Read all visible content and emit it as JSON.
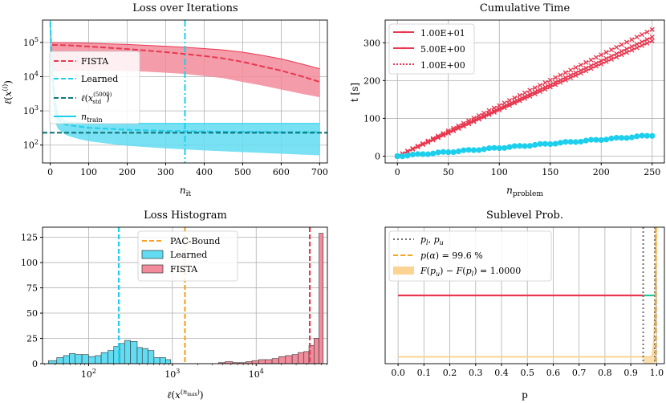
{
  "colors": {
    "fista": "#e8374f",
    "fista_fill": "#f28b9b",
    "learned": "#1ccfec",
    "learned_fill": "#62dcf2",
    "std": "#12787a",
    "pac": "#f7a325",
    "pac_fill": "#fbd392",
    "grid": "#b0b0b0",
    "dotted": "#6e6e6e",
    "green": "#2fc39a"
  },
  "chart_data": [
    {
      "type": "line",
      "title": "Loss over Iterations",
      "xlabel": "n_it",
      "ylabel": "ℓ(x^(i))",
      "yscale": "log",
      "xlim": [
        -20,
        720
      ],
      "ylim": [
        30,
        450000
      ],
      "xticks": [
        0,
        100,
        200,
        300,
        400,
        500,
        600,
        700
      ],
      "yticks": [
        {
          "v": 100,
          "e": "2"
        },
        {
          "v": 1000,
          "e": "3"
        },
        {
          "v": 10000,
          "e": "4"
        },
        {
          "v": 100000,
          "e": "5"
        }
      ],
      "legend": [
        {
          "label": "FISTA",
          "style": "dashed",
          "color": "fista"
        },
        {
          "label": "Learned",
          "style": "dashed",
          "color": "learned"
        },
        {
          "label": "ℓ(x_std^(5000))",
          "style": "dashed",
          "color": "std"
        },
        {
          "label": "n_train",
          "style": "solid",
          "color": "learned"
        }
      ],
      "series": [
        {
          "name": "FISTA",
          "x": [
            5,
            50,
            100,
            150,
            200,
            250,
            300,
            350,
            400,
            450,
            500,
            550,
            600,
            650,
            700
          ],
          "median": [
            85000,
            82000,
            76000,
            70000,
            64000,
            58000,
            52000,
            46000,
            40000,
            34000,
            27000,
            20000,
            15000,
            10500,
            7000
          ],
          "lower": [
            14000,
            14500,
            14800,
            14800,
            14500,
            14000,
            13000,
            12000,
            10500,
            9000,
            7000,
            5500,
            4200,
            3200,
            2500
          ],
          "upper": [
            100000,
            98000,
            95000,
            91000,
            87000,
            82000,
            77000,
            72000,
            66000,
            60000,
            52000,
            42000,
            33000,
            24000,
            17000
          ]
        },
        {
          "name": "Learned",
          "x": [
            0,
            3,
            6,
            10,
            15,
            20,
            30,
            40,
            50,
            75,
            100,
            150,
            200,
            300,
            400,
            500,
            600,
            700
          ],
          "median": [
            400000,
            60000,
            8000,
            2000,
            900,
            600,
            450,
            400,
            380,
            350,
            320,
            300,
            280,
            260,
            250,
            245,
            240,
            240
          ],
          "lower": [
            400000,
            30000,
            3000,
            800,
            400,
            300,
            240,
            200,
            180,
            150,
            130,
            110,
            95,
            80,
            70,
            62,
            56,
            50
          ],
          "upper": [
            450000,
            100000,
            20000,
            5000,
            1500,
            800,
            600,
            500,
            470,
            450,
            440,
            430,
            430,
            430,
            430,
            430,
            430,
            430
          ]
        },
        {
          "name": "std",
          "value": 230
        },
        {
          "name": "n_train",
          "x": 350
        }
      ]
    },
    {
      "type": "line",
      "title": "Cumulative Time",
      "xlabel": "n_problem",
      "ylabel": "t [s]",
      "xlim": [
        -12,
        262
      ],
      "ylim": [
        -18,
        360
      ],
      "xticks": [
        0,
        50,
        100,
        150,
        200,
        250
      ],
      "yticks": [
        0,
        100,
        200,
        300
      ],
      "legend": [
        {
          "label": "1.00E+01",
          "style": "solid"
        },
        {
          "label": "5.00E+00",
          "style": "solid"
        },
        {
          "label": "1.00E+00",
          "style": "dotted"
        }
      ],
      "series": [
        {
          "name": "1.00E+01",
          "slope": 1.26,
          "marker": "x",
          "color": "fista"
        },
        {
          "name": "5.00E+00",
          "slope": 1.22,
          "marker": "x",
          "color": "fista"
        },
        {
          "name": "1.00E+00",
          "slope": 1.34,
          "marker": "x",
          "color": "fista"
        },
        {
          "name": "Learned",
          "slope": 0.22,
          "marker": "o",
          "color": "learned"
        }
      ],
      "n_points": 250
    },
    {
      "type": "bar",
      "title": "Loss Histogram",
      "xlabel": "ℓ(x^(n_max))",
      "xscale": "log",
      "xlim_log10": [
        1.45,
        4.85
      ],
      "ylim": [
        0,
        135
      ],
      "yticks": [
        0,
        25,
        50,
        75,
        100,
        125
      ],
      "xticks": [
        {
          "v": 2,
          "e": "2"
        },
        {
          "v": 3,
          "e": "3"
        },
        {
          "v": 4,
          "e": "4"
        }
      ],
      "legend": [
        {
          "label": "PAC-Bound",
          "style": "dashed",
          "color": "pac"
        },
        {
          "label": "Learned",
          "style": "bar",
          "color": "learned"
        },
        {
          "label": "FISTA",
          "style": "bar",
          "color": "fista"
        }
      ],
      "vlines": [
        {
          "name": "Learned median",
          "x_log10": 2.36,
          "color": "learned"
        },
        {
          "name": "PAC-Bound",
          "x_log10": 3.15,
          "color": "pac"
        },
        {
          "name": "FISTA median",
          "x_log10": 4.64,
          "color": "fista"
        }
      ],
      "learned": {
        "edges_log10": [
          1.52,
          1.62,
          1.7,
          1.77,
          1.84,
          1.92,
          2.0,
          2.08,
          2.15,
          2.23,
          2.3,
          2.37,
          2.43,
          2.5,
          2.58,
          2.64,
          2.71,
          2.78,
          2.85,
          2.92,
          2.98
        ],
        "counts": [
          3,
          6,
          8,
          10,
          9,
          9,
          7,
          8,
          11,
          13,
          17,
          20,
          23,
          22,
          16,
          15,
          13,
          6,
          6,
          4
        ]
      },
      "fista": {
        "edges_log10": [
          3.55,
          3.63,
          3.72,
          3.8,
          3.88,
          3.95,
          4.03,
          4.11,
          4.19,
          4.27,
          4.35,
          4.43,
          4.5,
          4.57,
          4.63,
          4.69,
          4.75,
          4.8
        ],
        "counts": [
          1,
          2,
          1,
          1,
          2,
          3,
          4,
          4,
          5,
          7,
          8,
          9,
          11,
          12,
          18,
          25,
          129
        ]
      }
    },
    {
      "type": "line",
      "title": "Sublevel Prob.",
      "xlabel": "p",
      "xlim": [
        -0.05,
        1.03
      ],
      "ylim": [
        0,
        1
      ],
      "xticks": [
        "0.0",
        "0.1",
        "0.2",
        "0.3",
        "0.4",
        "0.5",
        "0.6",
        "0.7",
        "0.8",
        "0.9",
        "1.0"
      ],
      "legend": [
        {
          "label": "p_l, p_u",
          "style": "dotted",
          "color": "dotted"
        },
        {
          "label": "p(α) = 99.6 %",
          "style": "dashed",
          "color": "pac"
        },
        {
          "label": "F(p_u) − F(p_l) = 1.0000",
          "style": "fill",
          "color": "pac"
        }
      ],
      "p_l": 0.948,
      "p_u": 0.993,
      "alpha_p": 0.996,
      "probability_diff": "1.0000"
    }
  ],
  "texts": {
    "t1": "Loss over Iterations",
    "t2": "Cumulative Time",
    "t3": "Loss Histogram",
    "t4": "Sublevel Prob."
  }
}
